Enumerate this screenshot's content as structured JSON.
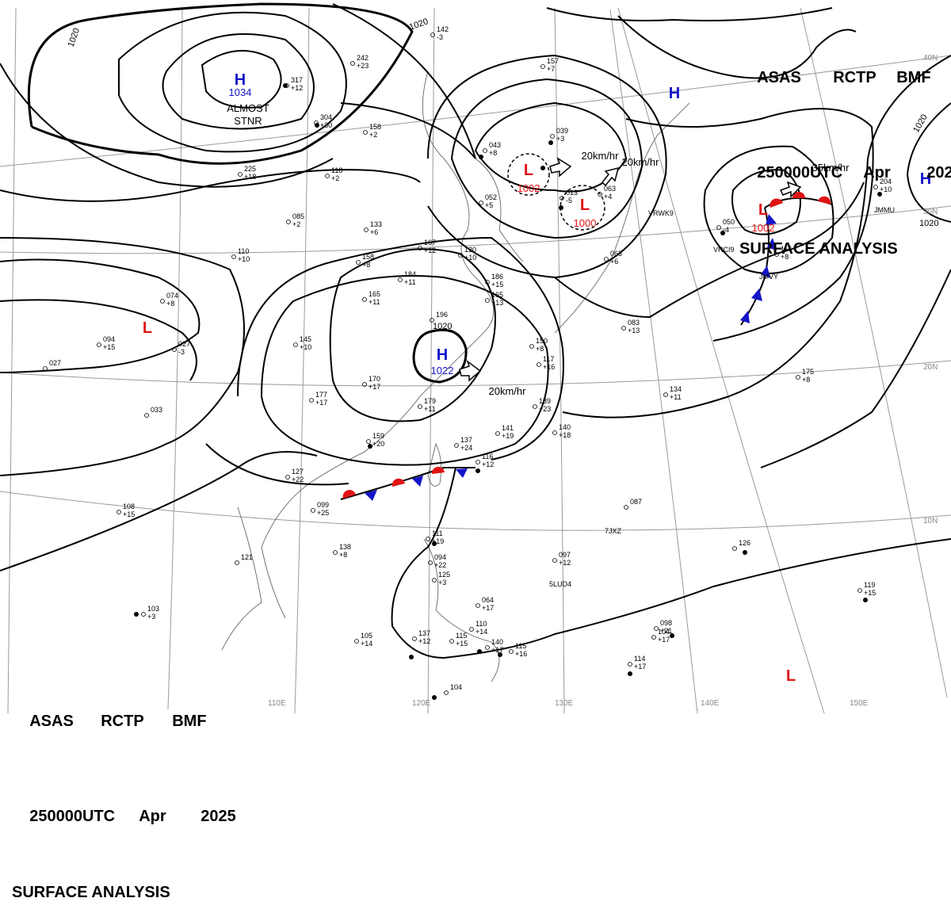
{
  "header": {
    "line1": [
      "ASAS",
      "RCTP",
      "BMF"
    ],
    "line2": [
      "250000UTC",
      "Apr",
      "2025"
    ],
    "line3": "SURFACE ANALYSIS"
  },
  "colors": {
    "high": "#1414c8",
    "low": "#e01414",
    "isobar": "#000000",
    "grid": "#9a9a9a"
  },
  "pressure_centers": [
    {
      "type": "H",
      "value": "1034",
      "note": "ALMOST STNR"
    },
    {
      "type": "H",
      "value": ""
    },
    {
      "type": "H",
      "value": "1022",
      "speed": "20km/hr"
    },
    {
      "type": "H",
      "value": ""
    },
    {
      "type": "L",
      "value": "1002",
      "speed": "20km/hr"
    },
    {
      "type": "L",
      "value": "1000",
      "speed": "20km/hr"
    },
    {
      "type": "L",
      "value": "1002",
      "speed": "35km/hr"
    },
    {
      "type": "L",
      "value": ""
    },
    {
      "type": "L",
      "value": ""
    }
  ],
  "isobar_labels": [
    "1020",
    "1020",
    "1020",
    "1020",
    "1020"
  ],
  "lon_labels": [
    "110E",
    "120E",
    "130E",
    "140E",
    "150E"
  ],
  "lat_labels": [
    "40N",
    "30N",
    "20N",
    "10N"
  ],
  "ship_ids": [
    "VRWK9",
    "VRCI9",
    "JMVY",
    "7JXZ",
    "5LUD4",
    "JMMU"
  ],
  "stations": [
    {
      "t": "142",
      "d": "-3"
    },
    {
      "t": "242",
      "d": "+23"
    },
    {
      "t": "317",
      "d": "+12"
    },
    {
      "t": "304",
      "d": "+30"
    },
    {
      "t": "158",
      "d": "+2"
    },
    {
      "t": "043",
      "d": "+8"
    },
    {
      "t": "039",
      "d": "+3"
    },
    {
      "t": "157",
      "d": "+7"
    },
    {
      "t": "052",
      "d": "+5"
    },
    {
      "t": "013",
      "d": "-5"
    },
    {
      "t": "063",
      "d": "+4"
    },
    {
      "t": "063",
      "d": "+6"
    },
    {
      "t": "050",
      "d": "-4"
    },
    {
      "t": "116",
      "d": "+8"
    },
    {
      "t": "204",
      "d": "+10"
    },
    {
      "t": "225",
      "d": "+18"
    },
    {
      "t": "118",
      "d": "+2"
    },
    {
      "t": "085",
      "d": "+2"
    },
    {
      "t": "133",
      "d": "+6"
    },
    {
      "t": "110",
      "d": "+10"
    },
    {
      "t": "158",
      "d": "+8"
    },
    {
      "t": "167",
      "d": "+12"
    },
    {
      "t": "120",
      "d": "+10"
    },
    {
      "t": "074",
      "d": "+8"
    },
    {
      "t": "094",
      "d": "+15"
    },
    {
      "t": "027",
      "d": "-3"
    },
    {
      "t": "027",
      "d": ""
    },
    {
      "t": "165",
      "d": "+11"
    },
    {
      "t": "184",
      "d": "+11"
    },
    {
      "t": "186",
      "d": "+15"
    },
    {
      "t": "165",
      "d": "+13"
    },
    {
      "t": "196",
      "d": ""
    },
    {
      "t": "145",
      "d": "+10"
    },
    {
      "t": "150",
      "d": "+8"
    },
    {
      "t": "117",
      "d": "+16"
    },
    {
      "t": "083",
      "d": "+13"
    },
    {
      "t": "170",
      "d": "+17"
    },
    {
      "t": "179",
      "d": "+11"
    },
    {
      "t": "177",
      "d": "+17"
    },
    {
      "t": "139",
      "d": "+23"
    },
    {
      "t": "134",
      "d": "+11"
    },
    {
      "t": "175",
      "d": "+8"
    },
    {
      "t": "033",
      "d": ""
    },
    {
      "t": "159",
      "d": "+20"
    },
    {
      "t": "141",
      "d": "+19"
    },
    {
      "t": "140",
      "d": "+18"
    },
    {
      "t": "137",
      "d": "+24"
    },
    {
      "t": "116",
      "d": "+12"
    },
    {
      "t": "127",
      "d": "+22"
    },
    {
      "t": "108",
      "d": "+15"
    },
    {
      "t": "099",
      "d": "+25"
    },
    {
      "t": "087",
      "d": ""
    },
    {
      "t": "138",
      "d": "+8"
    },
    {
      "t": "111",
      "d": "+19"
    },
    {
      "t": "121",
      "d": ""
    },
    {
      "t": "094",
      "d": "+22"
    },
    {
      "t": "097",
      "d": "+12"
    },
    {
      "t": "126",
      "d": ""
    },
    {
      "t": "125",
      "d": "+3"
    },
    {
      "t": "064",
      "d": "+17"
    },
    {
      "t": "119",
      "d": "+15"
    },
    {
      "t": "103",
      "d": "+3"
    },
    {
      "t": "098",
      "d": "+21"
    },
    {
      "t": "105",
      "d": "+14"
    },
    {
      "t": "137",
      "d": "+12"
    },
    {
      "t": "115",
      "d": "+15"
    },
    {
      "t": "140",
      "d": "+17"
    },
    {
      "t": "115",
      "d": "+16"
    },
    {
      "t": "114",
      "d": "+17"
    },
    {
      "t": "104",
      "d": ""
    },
    {
      "t": "104",
      "d": "+17"
    },
    {
      "t": "110",
      "d": "+14"
    }
  ]
}
